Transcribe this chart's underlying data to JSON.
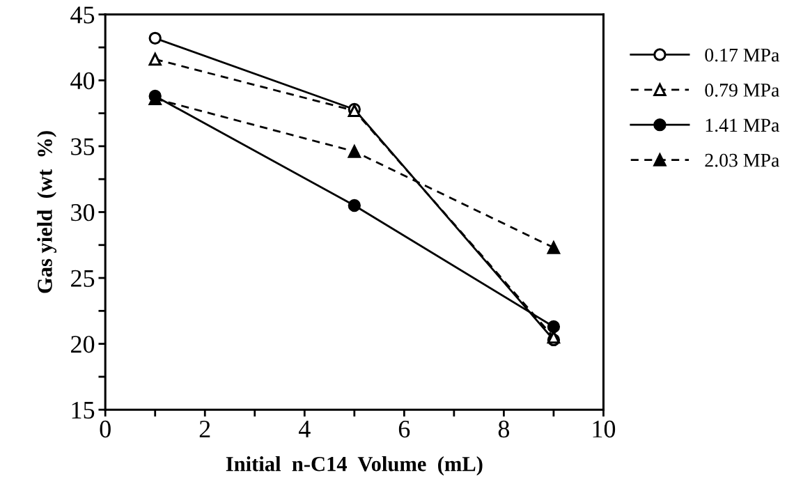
{
  "chart_data": {
    "type": "line",
    "xlabel": "Initial  n-C14  Volume  (mL)",
    "ylabel": "Gas yield  (wt  %)",
    "x": [
      1,
      5,
      9
    ],
    "series": [
      {
        "name": "0.17 MPa",
        "color": "#000000",
        "values": [
          43.2,
          37.8,
          20.3
        ],
        "marker": "circle-open",
        "line_style": "solid"
      },
      {
        "name": "0.79 MPa",
        "color": "#000000",
        "values": [
          41.6,
          37.7,
          20.5
        ],
        "marker": "triangle-open",
        "line_style": "dashed"
      },
      {
        "name": "1.41 MPa",
        "color": "#000000",
        "values": [
          38.8,
          30.5,
          21.3
        ],
        "marker": "circle",
        "line_style": "solid"
      },
      {
        "name": "2.03 MPa",
        "color": "#000000",
        "values": [
          38.6,
          34.6,
          27.3
        ],
        "marker": "triangle",
        "line_style": "dashed"
      }
    ],
    "xlim": [
      0,
      10
    ],
    "ylim": [
      15,
      45
    ],
    "xticks": [
      0,
      {
        "value": 1,
        "label": null
      },
      2,
      {
        "value": 3,
        "label": null
      },
      4,
      {
        "value": 5,
        "label": null
      },
      6,
      {
        "value": 7,
        "label": null
      },
      8,
      {
        "value": 9,
        "label": null
      },
      10
    ],
    "yticks": [
      15,
      {
        "value": 17.5,
        "label": null
      },
      20,
      {
        "value": 22.5,
        "label": null
      },
      25,
      {
        "value": 27.5,
        "label": null
      },
      30,
      {
        "value": 32.5,
        "label": null
      },
      35,
      {
        "value": 37.5,
        "label": null
      },
      40,
      {
        "value": 42.5,
        "label": null
      },
      45
    ],
    "grid": false,
    "legend": "right"
  }
}
